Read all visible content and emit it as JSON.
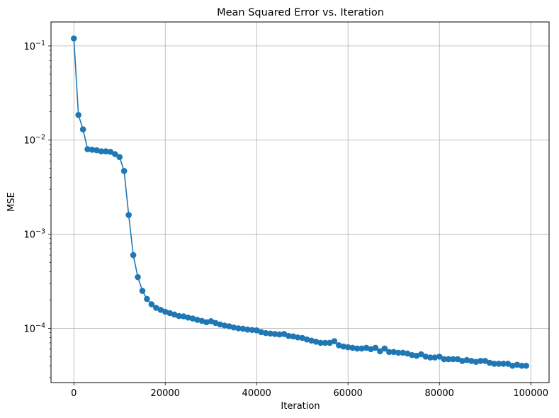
{
  "chart_data": {
    "type": "line",
    "title": "Mean Squared Error vs. Iteration",
    "xlabel": "Iteration",
    "ylabel": "MSE",
    "xlim": [
      -5000,
      104000
    ],
    "ylim": [
      2.65e-05,
      0.18
    ],
    "yscale": "log",
    "grid": true,
    "x_ticks": [
      0,
      20000,
      40000,
      60000,
      80000,
      100000
    ],
    "x_tick_labels": [
      "0",
      "20000",
      "40000",
      "60000",
      "80000",
      "100000"
    ],
    "y_ticks": [
      0.1,
      0.01,
      0.001,
      0.0001
    ],
    "y_tick_labels": [
      {
        "base": "10",
        "exp": "−1"
      },
      {
        "base": "10",
        "exp": "−2"
      },
      {
        "base": "10",
        "exp": "−3"
      },
      {
        "base": "10",
        "exp": "−4"
      }
    ],
    "color": "#1f77b4",
    "series": [
      {
        "x": [
          0,
          1000,
          2000,
          3000,
          4000,
          5000,
          6000,
          7000,
          8000,
          9000,
          10000,
          11000,
          12000,
          13000,
          14000,
          15000,
          16000,
          17000,
          18000,
          19000,
          20000,
          21000,
          22000,
          23000,
          24000,
          25000,
          26000,
          27000,
          28000,
          29000,
          30000,
          31000,
          32000,
          33000,
          34000,
          35000,
          36000,
          37000,
          38000,
          39000,
          40000,
          41000,
          42000,
          43000,
          44000,
          45000,
          46000,
          47000,
          48000,
          49000,
          50000,
          51000,
          52000,
          53000,
          54000,
          55000,
          56000,
          57000,
          58000,
          59000,
          60000,
          61000,
          62000,
          63000,
          64000,
          65000,
          66000,
          67000,
          68000,
          69000,
          70000,
          71000,
          72000,
          73000,
          74000,
          75000,
          76000,
          77000,
          78000,
          79000,
          80000,
          81000,
          82000,
          83000,
          84000,
          85000,
          86000,
          87000,
          88000,
          89000,
          90000,
          91000,
          92000,
          93000,
          94000,
          95000,
          96000,
          97000,
          98000,
          99000
        ],
        "values": [
          0.12,
          0.0185,
          0.013,
          0.008,
          0.0079,
          0.0078,
          0.0076,
          0.0076,
          0.0075,
          0.0071,
          0.0066,
          0.0047,
          0.0016,
          0.0006,
          0.00035,
          0.00025,
          0.000205,
          0.00018,
          0.000165,
          0.000157,
          0.00015,
          0.000145,
          0.00014,
          0.000135,
          0.000134,
          0.00013,
          0.000127,
          0.000123,
          0.00012,
          0.000116,
          0.000119,
          0.000114,
          0.00011,
          0.000107,
          0.000105,
          0.000102,
          0.0001,
          9.9e-05,
          9.7e-05,
          9.6e-05,
          9.5e-05,
          9.1e-05,
          8.9e-05,
          8.8e-05,
          8.7e-05,
          8.6e-05,
          8.7e-05,
          8.3e-05,
          8.2e-05,
          8e-05,
          7.9e-05,
          7.6e-05,
          7.4e-05,
          7.2e-05,
          7e-05,
          7e-05,
          7e-05,
          7.3e-05,
          6.6e-05,
          6.4e-05,
          6.3e-05,
          6.2e-05,
          6.1e-05,
          6.1e-05,
          6.2e-05,
          6e-05,
          6.2e-05,
          5.7e-05,
          6.1e-05,
          5.6e-05,
          5.6e-05,
          5.5e-05,
          5.5e-05,
          5.4e-05,
          5.2e-05,
          5.1e-05,
          5.3e-05,
          5e-05,
          4.9e-05,
          4.9e-05,
          5e-05,
          4.7e-05,
          4.7e-05,
          4.7e-05,
          4.7e-05,
          4.5e-05,
          4.6e-05,
          4.5e-05,
          4.4e-05,
          4.5e-05,
          4.5e-05,
          4.3e-05,
          4.2e-05,
          4.2e-05,
          4.2e-05,
          4.2e-05,
          4e-05,
          4.1e-05,
          4e-05,
          4e-05
        ]
      }
    ]
  }
}
